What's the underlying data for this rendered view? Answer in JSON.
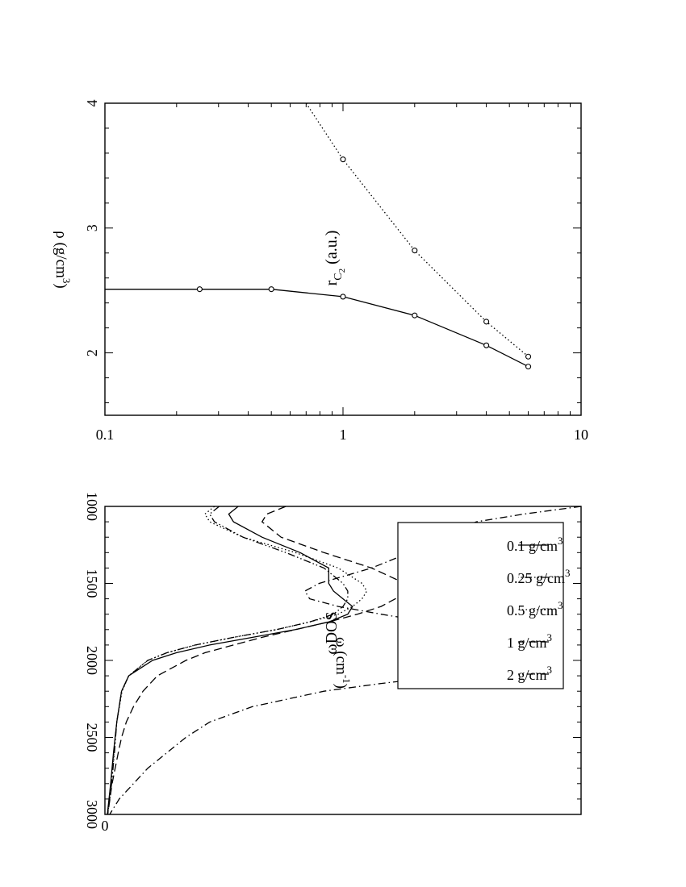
{
  "chart_data": [
    {
      "type": "line",
      "xlabel": "ω (cm",
      "xlabel_sup": "-1",
      "xlabel_end": ")",
      "ylabel": "ωDOS",
      "xlim": [
        1000,
        3000
      ],
      "ylim": [
        0,
        1.0
      ],
      "x_ticks": [
        1000,
        1500,
        2000,
        2500,
        3000
      ],
      "x_tick_labels": [
        "1000",
        "1500",
        "2000",
        "2500",
        "3000"
      ],
      "y_ticks": [
        0
      ],
      "y_tick_labels": [
        "0"
      ],
      "legend": "top-left",
      "series": [
        {
          "name": "0.1 g/cm",
          "name_sup": "3",
          "style": "solid",
          "x": [
            1000,
            1050,
            1100,
            1200,
            1300,
            1400,
            1500,
            1550,
            1600,
            1650,
            1700,
            1750,
            1800,
            1850,
            1900,
            1950,
            2000,
            2100,
            2200,
            2400,
            2600,
            2800,
            3000
          ],
          "y": [
            0.28,
            0.26,
            0.27,
            0.33,
            0.41,
            0.47,
            0.47,
            0.48,
            0.5,
            0.52,
            0.51,
            0.47,
            0.4,
            0.31,
            0.22,
            0.15,
            0.1,
            0.05,
            0.035,
            0.025,
            0.018,
            0.012,
            0.005
          ]
        },
        {
          "name": "0.25 g/cm",
          "name_sup": "3",
          "style": "dashdotdot",
          "x": [
            1000,
            1050,
            1100,
            1200,
            1300,
            1400,
            1500,
            1550,
            1600,
            1650,
            1700,
            1750,
            1800,
            1850,
            1900,
            1950,
            2000,
            2100,
            2200,
            2400,
            2600,
            2800,
            3000
          ],
          "y": [
            0.24,
            0.22,
            0.23,
            0.29,
            0.38,
            0.46,
            0.5,
            0.51,
            0.51,
            0.5,
            0.48,
            0.43,
            0.36,
            0.27,
            0.19,
            0.13,
            0.09,
            0.05,
            0.035,
            0.025,
            0.02,
            0.014,
            0.006
          ]
        },
        {
          "name": "0.5 g/cm",
          "name_sup": "3",
          "style": "dotted",
          "x": [
            1000,
            1050,
            1100,
            1200,
            1300,
            1400,
            1500,
            1550,
            1600,
            1650,
            1700,
            1750,
            1800,
            1850,
            1900,
            1950,
            2000,
            2100,
            2200,
            2400,
            2600,
            2800,
            3000
          ],
          "y": [
            0.23,
            0.21,
            0.22,
            0.29,
            0.4,
            0.49,
            0.54,
            0.55,
            0.54,
            0.52,
            0.49,
            0.43,
            0.36,
            0.27,
            0.19,
            0.13,
            0.09,
            0.05,
            0.036,
            0.025,
            0.019,
            0.013,
            0.006
          ]
        },
        {
          "name": "1 g/cm",
          "name_sup": "3",
          "style": "dashed",
          "x": [
            1000,
            1050,
            1100,
            1200,
            1300,
            1400,
            1500,
            1550,
            1600,
            1650,
            1700,
            1750,
            1800,
            1850,
            1900,
            1950,
            2000,
            2100,
            2200,
            2300,
            2400,
            2500,
            2600,
            2800,
            3000
          ],
          "y": [
            0.38,
            0.34,
            0.33,
            0.37,
            0.46,
            0.56,
            0.63,
            0.63,
            0.61,
            0.58,
            0.53,
            0.47,
            0.4,
            0.33,
            0.27,
            0.21,
            0.17,
            0.11,
            0.08,
            0.06,
            0.045,
            0.035,
            0.028,
            0.015,
            0.006
          ]
        },
        {
          "name": "2 g/cm",
          "name_sup": "3",
          "style": "dashdot",
          "x": [
            1000,
            1050,
            1100,
            1200,
            1300,
            1400,
            1500,
            1550,
            1600,
            1650,
            1700,
            1750,
            1800,
            1850,
            1900,
            1950,
            2000,
            2050,
            2100,
            2150,
            2200,
            2300,
            2400,
            2500,
            2600,
            2700,
            2800,
            2900,
            3000
          ],
          "y": [
            1.0,
            0.88,
            0.78,
            0.7,
            0.64,
            0.56,
            0.45,
            0.42,
            0.43,
            0.49,
            0.58,
            0.68,
            0.77,
            0.84,
            0.88,
            0.9,
            0.89,
            0.84,
            0.72,
            0.58,
            0.46,
            0.31,
            0.22,
            0.17,
            0.13,
            0.09,
            0.06,
            0.03,
            0.01
          ]
        }
      ]
    },
    {
      "type": "line",
      "xlabel": "ρ (g/cm",
      "xlabel_sup": "3",
      "xlabel_end": ")",
      "ylabel": "r",
      "ylabel_sub": "C",
      "ylabel_subsub": "2",
      "ylabel_end": " (a.u.)",
      "xscale": "log",
      "xlim": [
        0.1,
        10
      ],
      "ylim": [
        1.5,
        4
      ],
      "x_ticks": [
        0.1,
        1,
        10
      ],
      "x_tick_labels": [
        "0.1",
        "1",
        "10"
      ],
      "y_ticks": [
        2,
        3,
        4
      ],
      "y_tick_labels": [
        "2",
        "3",
        "4"
      ],
      "series": [
        {
          "style": "solid",
          "markers": "open-circle",
          "x": [
            0.1,
            0.25,
            0.5,
            1,
            2,
            4,
            6
          ],
          "y": [
            2.51,
            2.51,
            2.51,
            2.45,
            2.3,
            2.06,
            1.89
          ],
          "marked": [
            false,
            true,
            true,
            true,
            true,
            true,
            true
          ]
        },
        {
          "style": "dotted",
          "markers": "open-circle",
          "x": [
            0.7,
            1,
            2,
            4,
            6
          ],
          "y": [
            4.0,
            3.55,
            2.82,
            2.25,
            1.97
          ],
          "marked": [
            false,
            true,
            true,
            true,
            true
          ]
        }
      ]
    }
  ]
}
